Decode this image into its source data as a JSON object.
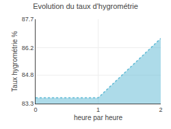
{
  "chart_data": {
    "type": "area",
    "title": "Evolution du taux d'hygrométrie",
    "xlabel": "heure par heure",
    "ylabel": "Taux hygrométrie %",
    "x": [
      0,
      1,
      2
    ],
    "values": [
      83.6,
      83.6,
      86.7
    ],
    "color": "#5bb8d4",
    "line_style": "dotted",
    "xlim": [
      0,
      2
    ],
    "ylim": [
      83.3,
      87.7
    ],
    "xticks": [
      0,
      1,
      2
    ],
    "yticks": [
      83.3,
      84.8,
      86.2,
      87.7
    ],
    "grid": true
  }
}
